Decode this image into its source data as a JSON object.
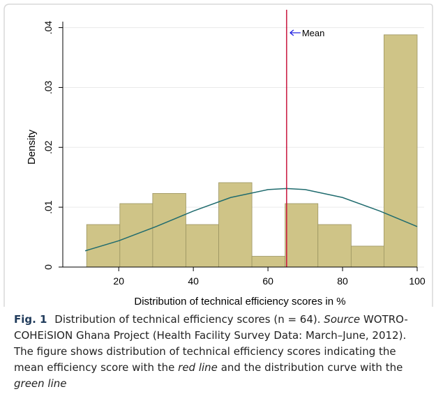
{
  "chart_data": {
    "type": "histogram",
    "bins": [
      11.4,
      20.3,
      29.1,
      38.0,
      46.8,
      55.7,
      64.6,
      73.4,
      82.3,
      91.1,
      100
    ],
    "values": [
      0.0071,
      0.0106,
      0.0123,
      0.0071,
      0.0141,
      0.0018,
      0.0106,
      0.0071,
      0.0035,
      0.0388
    ],
    "color": "#cfc487",
    "edge_color": "#9b9461",
    "curve": {
      "x": [
        11,
        20,
        30,
        40,
        50,
        60,
        65,
        70,
        80,
        90,
        100
      ],
      "values": [
        0.00271,
        0.00439,
        0.00676,
        0.00935,
        0.01162,
        0.01294,
        0.01312,
        0.01294,
        0.01162,
        0.00935,
        0.00676
      ],
      "color": "#1f6b6e"
    },
    "mean": 65,
    "mean_color": "#c8143c",
    "mean_label": "Mean",
    "arrow_color": "#1a1ae0",
    "xlabel": "Distribution of technical efficiency scores in %",
    "ylabel": "Density",
    "xlim": [
      5,
      100
    ],
    "ylim": [
      0,
      0.041
    ],
    "xticks": [
      20,
      40,
      60,
      80,
      100
    ],
    "yticks": [
      0,
      {
        "value": 0.01,
        "label": ".01"
      },
      {
        "value": 0.02,
        "label": ".02"
      },
      {
        "value": 0.03,
        "label": ".03"
      },
      {
        "value": 0.04,
        "label": ".04"
      }
    ],
    "grid": true
  },
  "caption": {
    "label": "Fig. 1",
    "text1": "Distribution of technical efficiency scores (n = 64).",
    "source": "Source",
    "text2": "WOTRO-COHEiSION Ghana Project (Health Facility Survey Data: March–June, 2012). The figure shows distribution of technical efficiency scores indicating the mean efficiency score with the",
    "red": "red line",
    "text3": "and the distribution curve with the",
    "green": "green line"
  }
}
